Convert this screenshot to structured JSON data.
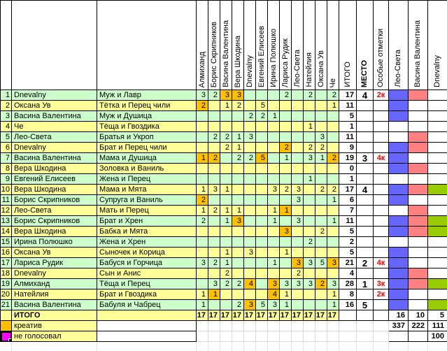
{
  "columns": {
    "voters": [
      "Алмиханд",
      "Борис Скрипников",
      "Васина Валентина",
      "Вера Шкодина",
      "Dnevalny",
      "Евгений Елисеев",
      "Ирина Полюшко",
      "Лариса Рудик",
      "Лео-Света",
      "Натейлия",
      "Оксана Ув",
      "Че"
    ],
    "total": "ИТОГО",
    "place": "МЕСТО",
    "notes": "Особые отметки",
    "marks": [
      "Лео-Света",
      "Васина Валентина",
      "Dnevalny"
    ]
  },
  "rows": [
    {
      "num": "1",
      "name": "Dnevalny",
      "entry": "Муж и Лавр",
      "votes": [
        "3",
        "2",
        "3o",
        "3o",
        "",
        "",
        "",
        "2",
        "",
        "2",
        "",
        "2"
      ],
      "total": "17",
      "place": "4",
      "note": "2к",
      "marks": [
        "leo",
        "vas"
      ]
    },
    {
      "num": "2",
      "name": "Оксана Ув",
      "entry": "Тётка и Перец чили",
      "votes": [
        "2o",
        "",
        "1",
        "2",
        "",
        "5",
        "",
        "",
        "",
        "",
        "",
        "1"
      ],
      "total": "11",
      "place": "",
      "note": "",
      "marks": [
        "leo"
      ]
    },
    {
      "num": "3",
      "name": "Васина Валентина",
      "entry": "Муж и Душица",
      "votes": [
        "",
        "",
        "",
        "",
        "2",
        "2",
        "1",
        "",
        "",
        "",
        "",
        ""
      ],
      "total": "5",
      "place": "",
      "note": "",
      "marks": [
        "leo"
      ]
    },
    {
      "num": "4",
      "name": "Че",
      "entry": "Тёща и Гвоздика",
      "votes": [
        "",
        "",
        "",
        "",
        "",
        "",
        "",
        "",
        "",
        "1",
        "",
        ""
      ],
      "total": "1",
      "place": "",
      "note": "",
      "marks": []
    },
    {
      "num": "5",
      "name": "Лео-Света",
      "entry": "Братья и Укроп",
      "votes": [
        "",
        "2",
        "2",
        "1",
        "3",
        "",
        "",
        "",
        "",
        "",
        "3",
        ""
      ],
      "total": "11",
      "place": "",
      "note": "",
      "marks": [
        "vas"
      ]
    },
    {
      "num": "6",
      "name": "Dnevalny",
      "entry": "Брат и Перец чили",
      "votes": [
        "",
        "",
        "2",
        "1",
        "",
        "",
        "",
        "2o",
        "",
        "2",
        "2",
        ""
      ],
      "total": "9",
      "place": "",
      "note": "",
      "marks": [
        "leo",
        "vas"
      ]
    },
    {
      "num": "7",
      "name": "Васина Валентина",
      "entry": "Мама и Душица",
      "votes": [
        "1o",
        "2o",
        "",
        "2",
        "2",
        "5o",
        "",
        "1",
        "",
        "3",
        "1",
        "2o"
      ],
      "total": "19",
      "place": "3",
      "note": "4к",
      "marks": [
        "leo"
      ]
    },
    {
      "num": "8",
      "name": "Вера Шкодина",
      "entry": "Золовка и Ваниль",
      "votes": [
        "",
        "",
        "",
        "",
        "",
        "",
        "",
        "",
        "",
        "",
        "",
        ""
      ],
      "total": "0",
      "place": "",
      "note": "",
      "marks": [
        "leo",
        "vas"
      ]
    },
    {
      "num": "9",
      "name": "Евгений Елисеев",
      "entry": "Жена и Перец",
      "votes": [
        "",
        "",
        "",
        "",
        "",
        "",
        "",
        "",
        "",
        "1",
        "",
        ""
      ],
      "total": "1",
      "place": "",
      "note": "",
      "marks": []
    },
    {
      "num": "10",
      "name": "Вера Шкодина",
      "entry": "Мама и Мята",
      "votes": [
        "1",
        "3",
        "1",
        "",
        "",
        "",
        "3",
        "2",
        "3",
        "",
        "2",
        "2"
      ],
      "total": "17",
      "place": "4",
      "note": "",
      "marks": [
        "leo",
        "vas",
        "dnev"
      ]
    },
    {
      "num": "11",
      "name": "Борис Скрипников",
      "entry": "Супруга и Ваниль",
      "votes": [
        "2o",
        "",
        "",
        "",
        "",
        "",
        "",
        "",
        "3",
        "",
        "",
        "1"
      ],
      "total": "6",
      "place": "",
      "note": "",
      "marks": [
        "leo"
      ]
    },
    {
      "num": "12",
      "name": "Лео-Света",
      "entry": "Мать и Перец",
      "votes": [
        "1",
        "2",
        "1",
        "1",
        "",
        "",
        "1",
        "1o",
        "",
        "",
        "",
        ""
      ],
      "total": "7",
      "place": "",
      "note": "",
      "marks": [
        "vas"
      ]
    },
    {
      "num": "13",
      "name": "Борис Скрипников",
      "entry": "Брат и Хрен",
      "votes": [
        "2",
        "",
        "1",
        "3o",
        "",
        "",
        "1",
        "",
        "3",
        "",
        "",
        "1"
      ],
      "total": "11",
      "place": "",
      "note": "",
      "marks": [
        "leo",
        "vas",
        "dnev"
      ]
    },
    {
      "num": "14",
      "name": "Вера Шкодина",
      "entry": "Бабка и Мята",
      "votes": [
        "",
        "",
        "",
        "",
        "",
        "",
        "",
        "3o",
        "",
        "",
        "2",
        ""
      ],
      "total": "5",
      "place": "",
      "note": "",
      "marks": [
        "leo",
        "vas",
        "dnev"
      ]
    },
    {
      "num": "15",
      "name": "Ирина Полюшко",
      "entry": "Жена и Хрен",
      "votes": [
        "",
        "",
        "",
        "",
        "",
        "",
        "",
        "",
        "",
        "2",
        "",
        ""
      ],
      "total": "2",
      "place": "",
      "note": "",
      "marks": []
    },
    {
      "num": "16",
      "name": "Оксана Ув",
      "entry": "Сыночек и Корица",
      "votes": [
        "",
        "",
        "1",
        "",
        "3",
        "",
        "",
        "1",
        "",
        "",
        "",
        ""
      ],
      "total": "5",
      "place": "",
      "note": "",
      "marks": [
        "leo"
      ]
    },
    {
      "num": "17",
      "name": "Лариса Рудик",
      "entry": "Бабуся и Горчица",
      "votes": [
        "3",
        "2",
        "1",
        "",
        "",
        "",
        "1",
        "",
        "3o",
        "3",
        "5",
        "3o"
      ],
      "total": "21",
      "place": "2",
      "note": "4к",
      "marks": [
        "leo"
      ]
    },
    {
      "num": "18",
      "name": "Dnevalny",
      "entry": "Сын и Анис",
      "votes": [
        "",
        "",
        "2",
        "",
        "",
        "",
        "",
        "",
        "2",
        "",
        "",
        ""
      ],
      "total": "4",
      "place": "",
      "note": "",
      "marks": [
        "leo",
        "vas"
      ]
    },
    {
      "num": "19",
      "name": "Алмиханд",
      "entry": "Тёща и Перец",
      "votes": [
        "",
        "3",
        "2",
        "2",
        "4o",
        "",
        "3o",
        "3",
        "3",
        "3",
        "2o",
        "3"
      ],
      "total": "28",
      "place": "1",
      "note": "3к",
      "marks": [
        "leo",
        "vas",
        "dnev"
      ]
    },
    {
      "num": "20",
      "name": "Натейлия",
      "entry": "Брат и Гвоздика",
      "votes": [
        "1",
        "1o",
        "",
        "",
        "",
        "",
        "4o",
        "1",
        "",
        "",
        "",
        "1"
      ],
      "total": "8",
      "place": "",
      "note": "2к",
      "marks": [
        "leo"
      ]
    },
    {
      "num": "21",
      "name": "Васина Валентина",
      "entry": "Бабуля и Чабрец",
      "votes": [
        "1",
        "",
        "",
        "2",
        "3o",
        "5",
        "3",
        "1",
        "",
        "",
        "",
        "1"
      ],
      "total": "16",
      "place": "5",
      "note": "",
      "marks": [
        "leo",
        "dnev"
      ]
    }
  ],
  "totals_row": {
    "label": "ИТОГО",
    "votes": [
      "17",
      "17",
      "17",
      "17",
      "17",
      "17",
      "17",
      "17",
      "17",
      "17",
      "17",
      "17"
    ],
    "mark_totals": [
      "16",
      "10",
      "5"
    ]
  },
  "legend": [
    {
      "swatch": "creative",
      "label": "креатив",
      "mark_values": [
        "337",
        "222",
        "111"
      ]
    },
    {
      "swatch": "novote",
      "label": "не голосовал",
      "mark_values": [
        "",
        "",
        "100"
      ]
    }
  ],
  "colors": {
    "creative_cell": "#ffc000",
    "no_vote_swatch": "#ff00ff",
    "row_green": "#ccffcc",
    "row_yellow": "#ffff99",
    "mark_leo_blue": "#6666ff",
    "mark_vas_pink": "#ff8080",
    "mark_dnev_green": "#99cc00",
    "note_red": "#ff0000"
  }
}
